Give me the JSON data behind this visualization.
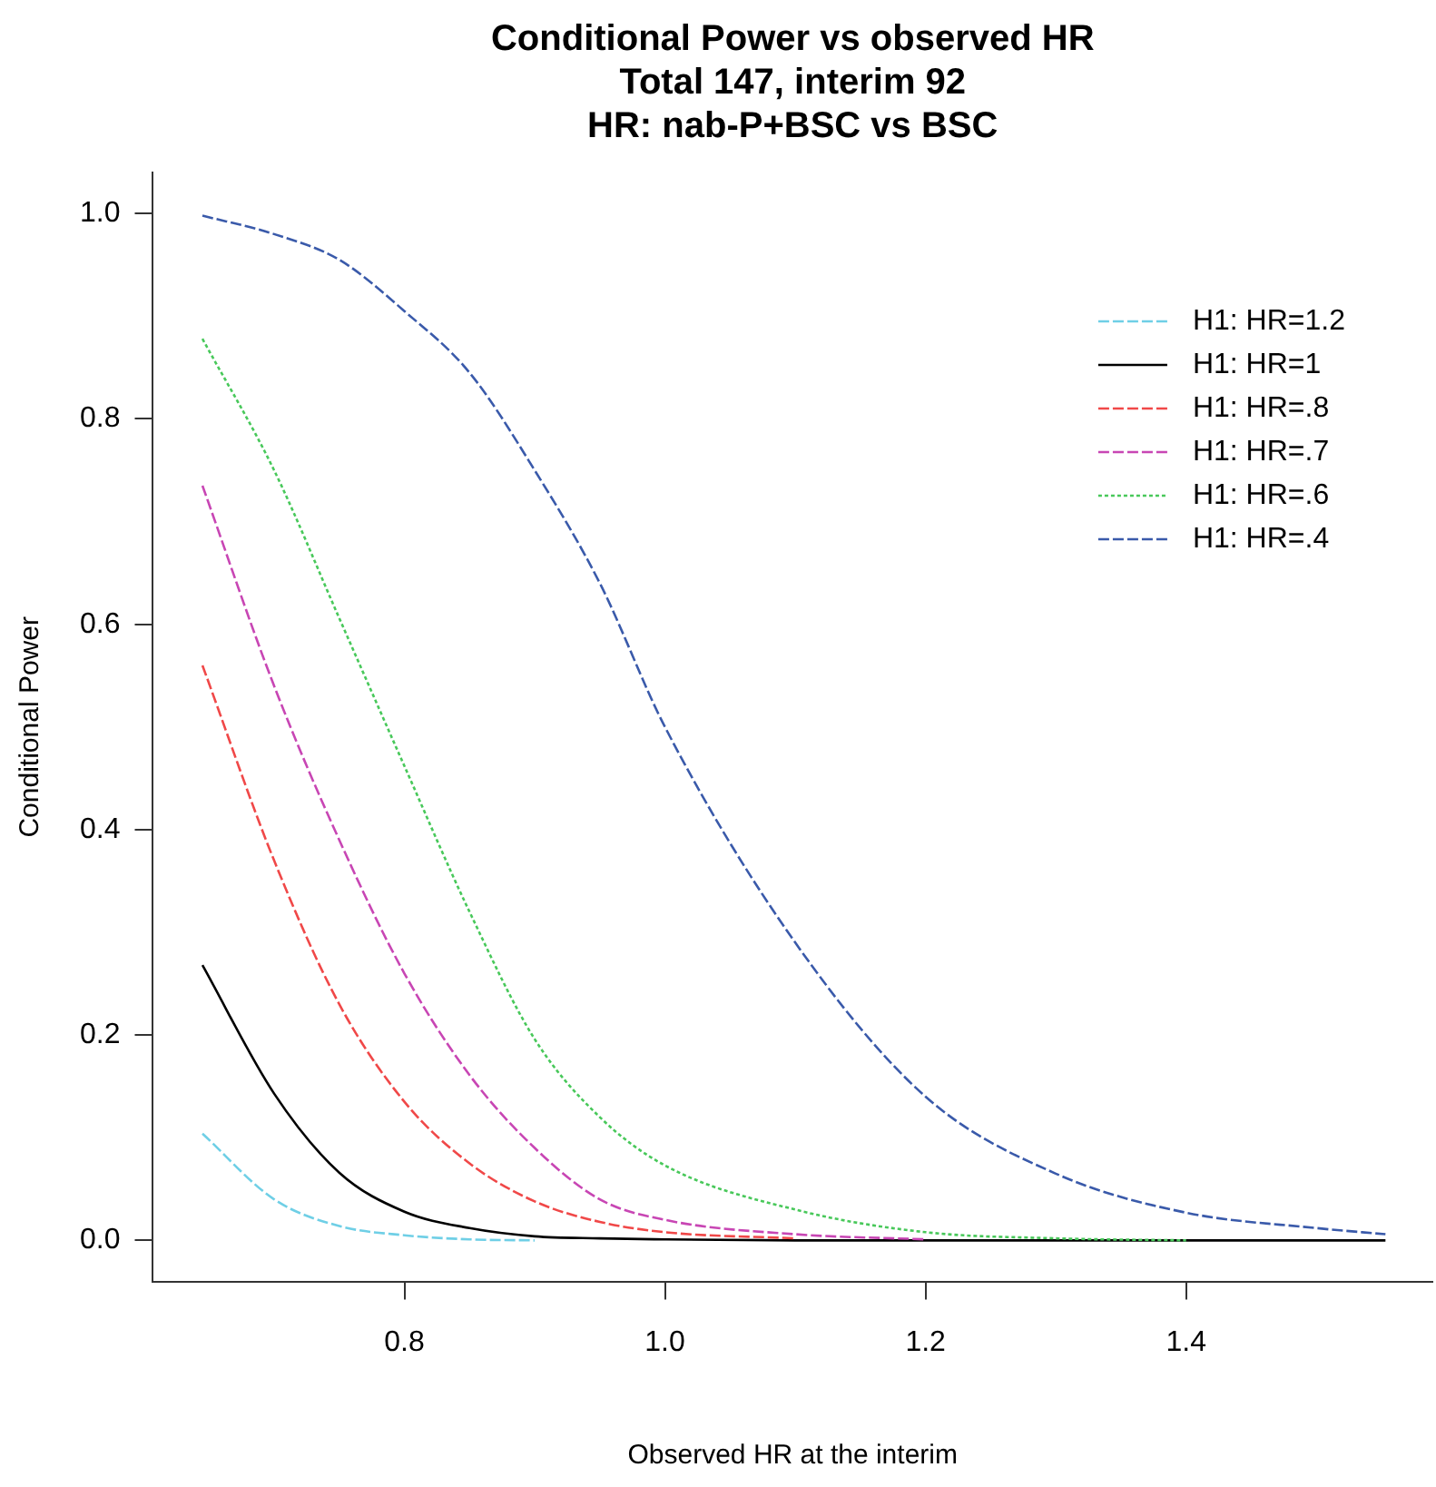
{
  "chart_data": {
    "type": "line",
    "title": "Conditional Power vs observed HR\nTotal 147, interim 92\nHR: nab-P+BSC vs BSC",
    "xlabel": "Observed HR at the interim",
    "ylabel": "Conditional Power",
    "x": [
      0.645,
      0.7,
      0.75,
      0.8,
      0.85,
      0.9,
      0.95,
      1.0,
      1.1,
      1.2,
      1.3,
      1.4,
      1.5,
      1.553
    ],
    "series": [
      {
        "name": "H1: HR=1.2",
        "color": "#6fcfe6",
        "line_style": "dashed",
        "values": [
          0.104,
          0.04,
          0.014,
          0.005,
          0.001,
          0,
          null,
          null,
          null,
          null,
          null,
          null,
          null,
          null
        ]
      },
      {
        "name": "H1: HR=1",
        "color": "#000000",
        "line_style": "solid",
        "values": [
          0.268,
          0.143,
          0.066,
          0.028,
          0.012,
          0.004,
          0.002,
          0.001,
          0,
          0,
          0,
          0,
          0,
          0
        ]
      },
      {
        "name": "H1: HR=.8",
        "color": "#f04848",
        "line_style": "dashed",
        "values": [
          0.56,
          0.37,
          0.23,
          0.135,
          0.075,
          0.038,
          0.018,
          0.008,
          0.002,
          null,
          null,
          null,
          null,
          null
        ]
      },
      {
        "name": "H1: HR=.7",
        "color": "#c846b4",
        "line_style": "dashed",
        "values": [
          0.735,
          0.54,
          0.39,
          0.26,
          0.161,
          0.09,
          0.04,
          0.02,
          0.006,
          0.001,
          null,
          null,
          null,
          null
        ]
      },
      {
        "name": "H1: HR=.6",
        "color": "#48c85a",
        "line_style": "dotted",
        "values": [
          0.878,
          0.75,
          0.606,
          0.462,
          0.32,
          0.196,
          0.12,
          0.073,
          0.03,
          0.008,
          0.002,
          0,
          null,
          null
        ]
      },
      {
        "name": "H1: HR=.4",
        "color": "#3a5aaa",
        "line_style": "dashed",
        "values": [
          0.998,
          0.98,
          0.955,
          0.905,
          0.845,
          0.75,
          0.64,
          0.5,
          0.29,
          0.14,
          0.065,
          0.027,
          0.012,
          0.006
        ]
      }
    ],
    "xlim": [
      0.607,
      1.589
    ],
    "xticks": [
      0.8,
      {
        "value": 1,
        "label": "1.0"
      },
      1.2,
      1.4
    ],
    "ylim": [
      -0.04,
      1.04
    ],
    "yticks": [
      {
        "value": 0,
        "label": "0.0"
      },
      0.2,
      0.4,
      0.6,
      0.8,
      {
        "value": 1,
        "label": "1.0"
      }
    ],
    "legend": "top right",
    "marker": "none",
    "grid": false
  }
}
